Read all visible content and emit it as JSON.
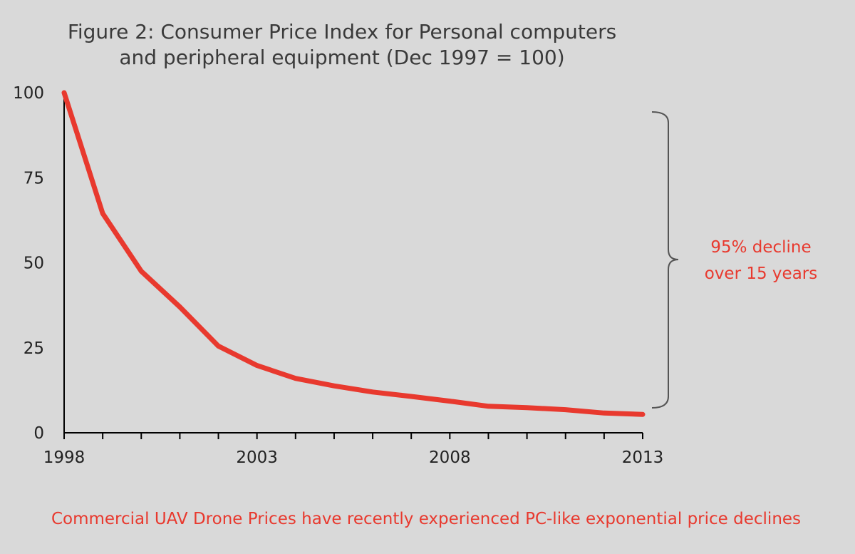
{
  "chart_data": {
    "type": "line",
    "title_line1": "Figure 2: Consumer Price Index for Personal computers",
    "title_line2": "and peripheral equipment (Dec 1997 = 100)",
    "xlabel": "",
    "ylabel": "",
    "x": [
      1998,
      1999,
      2000,
      2001,
      2002,
      2003,
      2004,
      2005,
      2006,
      2007,
      2008,
      2009,
      2010,
      2011,
      2012,
      2013
    ],
    "series": [
      {
        "values": [
          100,
          64.5,
          47.5,
          37,
          25.5,
          19.8,
          16,
          13.8,
          12,
          10.7,
          9.3,
          7.8,
          7.4,
          6.8,
          5.8,
          5.4
        ],
        "color": "#e8392e"
      }
    ],
    "xlim": [
      1998,
      2013
    ],
    "ylim": [
      0,
      100
    ],
    "x_ticks": [
      1998,
      2003,
      2008,
      2013
    ],
    "y_ticks": [
      0,
      25,
      50,
      75,
      100
    ],
    "grid": false,
    "annotation": {
      "line1": "95%  decline",
      "line2": "over 15 years",
      "color": "#e8392e"
    },
    "footnote": "Commercial UAV Drone Prices have recently experienced PC-like exponential price declines",
    "footnote_color": "#e8392e",
    "background": "#d9d9d9"
  }
}
